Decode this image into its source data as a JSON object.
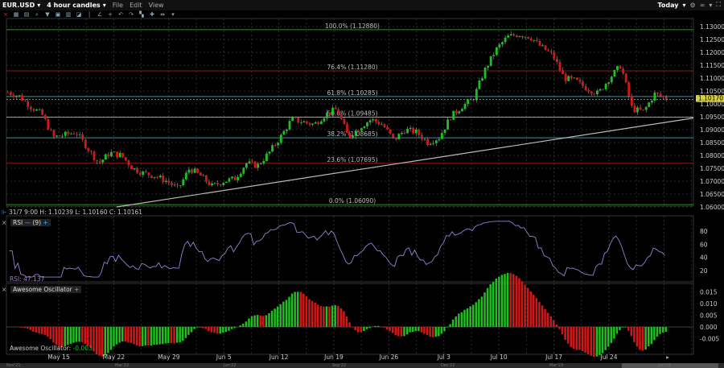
{
  "header": {
    "symbol": "EUR.USD",
    "timeframe": "4 hour candles",
    "menu": [
      "File",
      "Edit",
      "View"
    ],
    "range": "Today"
  },
  "toolbar_icons": [
    "close-icon",
    "grid-icon",
    "layout-icon",
    "zoom-icon",
    "filter-icon",
    "table-icon",
    "chart-icon",
    "draw-icon",
    "bar-icon",
    "line-icon",
    "crosshair-icon",
    "undo-icon",
    "redo-icon",
    "candle-icon",
    "move-icon",
    "split-icon",
    "more-icon"
  ],
  "price_axis": {
    "ticks": [
      "1.13000",
      "1.12500",
      "1.12000",
      "1.11500",
      "1.11000",
      "1.10500",
      "1.10000",
      "1.09500",
      "1.09000",
      "1.08500",
      "1.08000",
      "1.07500",
      "1.07000",
      "1.06500",
      "1.06000"
    ],
    "min": 1.06,
    "max": 1.13,
    "last_price": "1.10170",
    "last": 1.1017
  },
  "fib_levels": [
    {
      "label": "100.0% (1.12880)",
      "price": 1.1288,
      "color": "#2e8b2e"
    },
    {
      "label": "76.4% (1.11280)",
      "price": 1.1128,
      "color": "#8b1a1a"
    },
    {
      "label": "61.8% (1.10285)",
      "price": 1.10285,
      "color": "#2a9aa8"
    },
    {
      "label": "50.0% (1.09485)",
      "price": 1.09485,
      "color": "#c8a020"
    },
    {
      "label": "38.2% (1.08685)",
      "price": 1.08685,
      "color": "#2a9aa8"
    },
    {
      "label": "23.6% (1.07695)",
      "price": 1.07695,
      "color": "#8b1a1a"
    },
    {
      "label": "0.0% (1.06090)",
      "price": 1.0609,
      "color": "#2e8b2e"
    }
  ],
  "trendline": {
    "start_price": 1.06,
    "end_price": 1.0945,
    "color": "#bbbbbb"
  },
  "price_path": [
    1.1045,
    1.103,
    1.099,
    1.096,
    1.087,
    1.088,
    1.089,
    1.083,
    1.077,
    1.081,
    1.08,
    1.075,
    1.073,
    1.072,
    1.07,
    1.067,
    1.075,
    1.072,
    1.068,
    1.07,
    1.071,
    1.077,
    1.076,
    1.081,
    1.087,
    1.094,
    1.093,
    1.092,
    1.096,
    1.098,
    1.087,
    1.091,
    1.094,
    1.092,
    1.086,
    1.09,
    1.089,
    1.085,
    1.087,
    1.095,
    1.099,
    1.102,
    1.113,
    1.121,
    1.126,
    1.127,
    1.126,
    1.122,
    1.119,
    1.11,
    1.109,
    1.106,
    1.104,
    1.11,
    1.115,
    1.098,
    1.097,
    1.104,
    1.102
  ],
  "ohlc": {
    "date": "31/7 9:00",
    "high_label": "H:",
    "high": "1.10239",
    "low_label": "L:",
    "low": "1.10160",
    "close_label": "C:",
    "close": "1.10161"
  },
  "rsi": {
    "title": "RSI",
    "period": "(9)",
    "ticks": [
      "80",
      "60",
      "40",
      "20"
    ],
    "value_label": "RSI:",
    "value": "47.137",
    "color": "#9a7fd0"
  },
  "ao": {
    "title": "Awesome Oscillator",
    "ticks": [
      "0.015",
      "0.010",
      "0.005",
      "0.000",
      "-0.005"
    ],
    "value_label": "Awesome Oscillator:",
    "value": "-0.003",
    "up_color": "#1fbf1f",
    "down_color": "#d01818"
  },
  "x_axis": [
    "May 15",
    "May 22",
    "May 29",
    "Jun 5",
    "Jun 12",
    "Jun 19",
    "Jun 26",
    "Jul 3",
    "Jul 10",
    "Jul 17",
    "Jul 24"
  ],
  "scrollbar_labels": [
    "Nov'21",
    "Mar'22",
    "Jun'22",
    "Sep'22",
    "Dec'22",
    "Mar'23",
    "Jun'23"
  ],
  "colors": {
    "up": "#1fbf1f",
    "down": "#d01818",
    "last_price_bg": "#d8d040"
  }
}
